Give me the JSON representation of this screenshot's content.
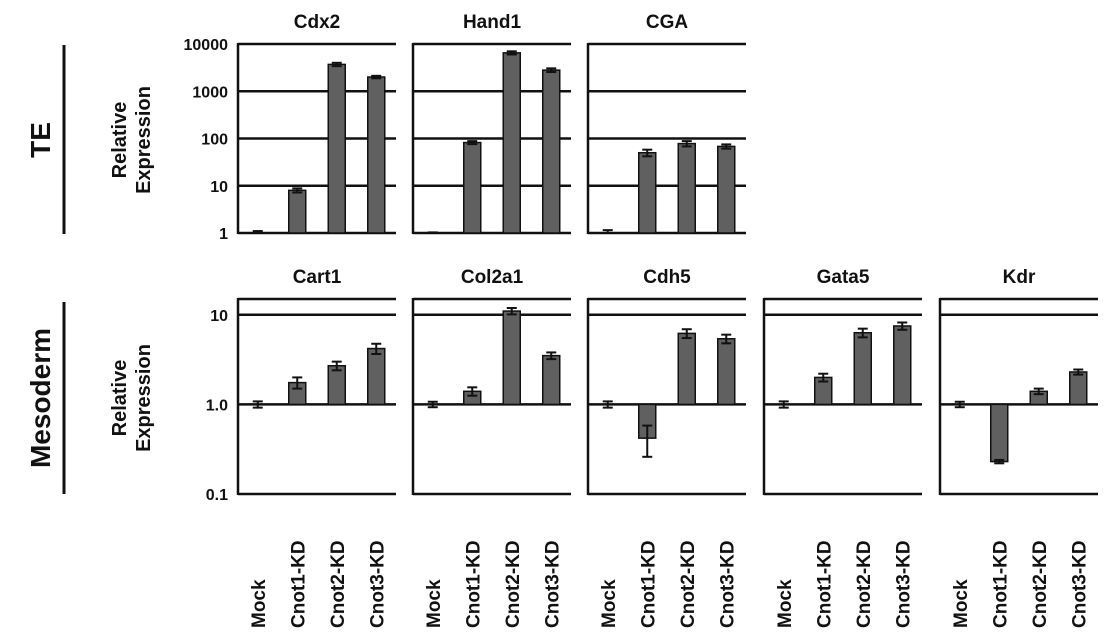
{
  "figure": {
    "row_labels": [
      "TE",
      "Mesoderm"
    ],
    "y_axis_label": [
      "Relative",
      "Expression"
    ]
  },
  "chart_data": [
    {
      "type": "bar",
      "row": "TE",
      "title": "Cdx2",
      "yscale": "log",
      "ylim": [
        1,
        10000
      ],
      "yticks": [
        1,
        10,
        100,
        1000,
        10000
      ],
      "ytick_labels": [
        "1",
        "10",
        "100",
        "1000",
        "10000"
      ],
      "categories": [
        "Mock",
        "Cnot1-KD",
        "Cnot2-KD",
        "Cnot3-KD"
      ],
      "values": [
        1.0,
        8,
        3700,
        2000
      ],
      "errors": [
        0.1,
        0.8,
        300,
        120
      ]
    },
    {
      "type": "bar",
      "row": "TE",
      "title": "Hand1",
      "yscale": "log",
      "ylim": [
        1,
        10000
      ],
      "yticks": [
        1,
        10,
        100,
        1000,
        10000
      ],
      "ytick_labels": [
        "1",
        "10",
        "100",
        "1000",
        "10000"
      ],
      "categories": [
        "Mock",
        "Cnot1-KD",
        "Cnot2-KD",
        "Cnot3-KD"
      ],
      "values": [
        1.0,
        82,
        6500,
        2800
      ],
      "errors": [
        0.03,
        6,
        500,
        250
      ]
    },
    {
      "type": "bar",
      "row": "TE",
      "title": "CGA",
      "yscale": "log",
      "ylim": [
        1,
        10000
      ],
      "yticks": [
        1,
        10,
        100,
        1000,
        10000
      ],
      "ytick_labels": [
        "1",
        "10",
        "100",
        "1000",
        "10000"
      ],
      "categories": [
        "Mock",
        "Cnot1-KD",
        "Cnot2-KD",
        "Cnot3-KD"
      ],
      "values": [
        1.0,
        50,
        78,
        68
      ],
      "errors": [
        0.15,
        8,
        10,
        7
      ]
    },
    {
      "type": "bar",
      "row": "Mesoderm",
      "title": "Cart1",
      "yscale": "log",
      "ylim": [
        0.1,
        15
      ],
      "yticks": [
        0.1,
        1.0,
        10
      ],
      "ytick_labels": [
        "0.1",
        "1.0",
        "10"
      ],
      "categories": [
        "Mock",
        "Cnot1-KD",
        "Cnot2-KD",
        "Cnot3-KD"
      ],
      "values": [
        1.0,
        1.75,
        2.7,
        4.2
      ],
      "errors": [
        0.08,
        0.25,
        0.3,
        0.55
      ]
    },
    {
      "type": "bar",
      "row": "Mesoderm",
      "title": "Col2a1",
      "yscale": "log",
      "ylim": [
        0.1,
        15
      ],
      "yticks": [
        0.1,
        1.0,
        10
      ],
      "ytick_labels": [
        "0.1",
        "1.0",
        "10"
      ],
      "categories": [
        "Mock",
        "Cnot1-KD",
        "Cnot2-KD",
        "Cnot3-KD"
      ],
      "values": [
        1.0,
        1.4,
        11,
        3.5
      ],
      "errors": [
        0.07,
        0.15,
        0.9,
        0.3
      ]
    },
    {
      "type": "bar",
      "row": "Mesoderm",
      "title": "Cdh5",
      "yscale": "log",
      "ylim": [
        0.1,
        15
      ],
      "yticks": [
        0.1,
        1.0,
        10
      ],
      "ytick_labels": [
        "0.1",
        "1.0",
        "10"
      ],
      "categories": [
        "Mock",
        "Cnot1-KD",
        "Cnot2-KD",
        "Cnot3-KD"
      ],
      "values": [
        1.0,
        0.42,
        6.2,
        5.4
      ],
      "errors": [
        0.08,
        0.16,
        0.7,
        0.6
      ]
    },
    {
      "type": "bar",
      "row": "Mesoderm",
      "title": "Gata5",
      "yscale": "log",
      "ylim": [
        0.1,
        15
      ],
      "yticks": [
        0.1,
        1.0,
        10
      ],
      "ytick_labels": [
        "0.1",
        "1.0",
        "10"
      ],
      "categories": [
        "Mock",
        "Cnot1-KD",
        "Cnot2-KD",
        "Cnot3-KD"
      ],
      "values": [
        1.0,
        2.0,
        6.3,
        7.5
      ],
      "errors": [
        0.08,
        0.2,
        0.7,
        0.7
      ]
    },
    {
      "type": "bar",
      "row": "Mesoderm",
      "title": "Kdr",
      "yscale": "log",
      "ylim": [
        0.1,
        15
      ],
      "yticks": [
        0.1,
        1.0,
        10
      ],
      "ytick_labels": [
        "0.1",
        "1.0",
        "10"
      ],
      "categories": [
        "Mock",
        "Cnot1-KD",
        "Cnot2-KD",
        "Cnot3-KD"
      ],
      "values": [
        1.0,
        0.23,
        1.4,
        2.3
      ],
      "errors": [
        0.07,
        0.01,
        0.1,
        0.15
      ]
    }
  ],
  "style": {
    "bar_color": "#606060",
    "line_color": "#111111"
  }
}
